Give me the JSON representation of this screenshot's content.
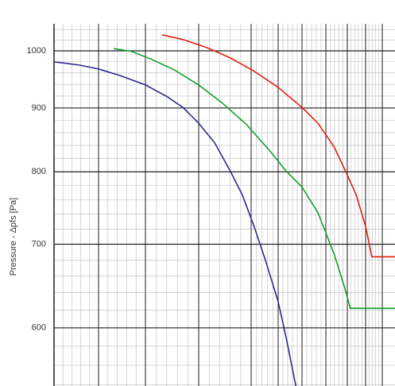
{
  "chart_data": {
    "type": "line",
    "y_label": "Pressure - Δpfs [Pa]",
    "ylim": [
      539,
      1051
    ],
    "yticks": [
      600,
      700,
      800,
      900,
      1000
    ],
    "y_log": true,
    "xlim": [
      0,
      100
    ],
    "grid": true,
    "series": [
      {
        "color": "#2a2a90",
        "x": [
          0,
          7.5,
          13.1,
          19.1,
          26.8,
          33.1,
          37.8,
          42.4,
          47.1,
          51.7,
          55.2,
          58.7,
          62.2,
          65.7,
          68.1,
          70.9
        ],
        "values": [
          980,
          974,
          967,
          956,
          939,
          919,
          901,
          875,
          844,
          801,
          767,
          723,
          677,
          630,
          589,
          539
        ]
      },
      {
        "color": "#14a028",
        "x": [
          17.5,
          22.6,
          28.4,
          35.4,
          42.4,
          49.4,
          56.4,
          63.4,
          68.1,
          72.7,
          77.4,
          82.1,
          85.1,
          86.9,
          100
        ],
        "values": [
          1004,
          999,
          985,
          965,
          939,
          908,
          873,
          831,
          801,
          778,
          742,
          688,
          648,
          622,
          622
        ]
      },
      {
        "color": "#e02010",
        "x": [
          31.7,
          37.8,
          44.8,
          51.7,
          58.7,
          65.7,
          72.7,
          77.4,
          82.1,
          85.5,
          88.6,
          91.4,
          93.2,
          100
        ],
        "values": [
          1030,
          1021,
          1006,
          987,
          963,
          935,
          901,
          875,
          838,
          801,
          767,
          723,
          684,
          684
        ]
      }
    ]
  }
}
